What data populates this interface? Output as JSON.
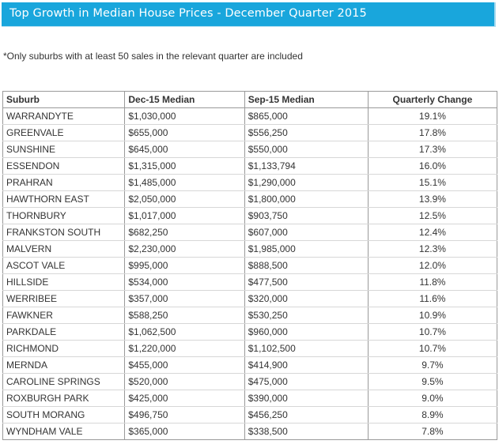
{
  "title": "Top Growth in Median House Prices - December Quarter 2015",
  "note": "*Only suburbs with at least 50 sales in the relevant quarter are included",
  "colors": {
    "title_bar": "#19a6dc",
    "title_text": "#ffffff",
    "border": "#9a9a9a"
  },
  "table": {
    "headers": [
      "Suburb",
      "Dec-15 Median",
      "Sep-15 Median",
      "Quarterly Change"
    ],
    "rows": [
      [
        "WARRANDYTE",
        "$1,030,000",
        "$865,000",
        "19.1%"
      ],
      [
        "GREENVALE",
        "$655,000",
        "$556,250",
        "17.8%"
      ],
      [
        "SUNSHINE",
        "$645,000",
        "$550,000",
        "17.3%"
      ],
      [
        "ESSENDON",
        "$1,315,000",
        "$1,133,794",
        "16.0%"
      ],
      [
        "PRAHRAN",
        "$1,485,000",
        "$1,290,000",
        "15.1%"
      ],
      [
        "HAWTHORN EAST",
        "$2,050,000",
        "$1,800,000",
        "13.9%"
      ],
      [
        "THORNBURY",
        "$1,017,000",
        "$903,750",
        "12.5%"
      ],
      [
        "FRANKSTON SOUTH",
        "$682,250",
        "$607,000",
        "12.4%"
      ],
      [
        "MALVERN",
        "$2,230,000",
        "$1,985,000",
        "12.3%"
      ],
      [
        "ASCOT VALE",
        "$995,000",
        "$888,500",
        "12.0%"
      ],
      [
        "HILLSIDE",
        "$534,000",
        "$477,500",
        "11.8%"
      ],
      [
        "WERRIBEE",
        "$357,000",
        "$320,000",
        "11.6%"
      ],
      [
        "FAWKNER",
        "$588,250",
        "$530,250",
        "10.9%"
      ],
      [
        "PARKDALE",
        "$1,062,500",
        "$960,000",
        "10.7%"
      ],
      [
        "RICHMOND",
        "$1,220,000",
        "$1,102,500",
        "10.7%"
      ],
      [
        "MERNDA",
        "$455,000",
        "$414,900",
        "9.7%"
      ],
      [
        "CAROLINE SPRINGS",
        "$520,000",
        "$475,000",
        "9.5%"
      ],
      [
        "ROXBURGH PARK",
        "$425,000",
        "$390,000",
        "9.0%"
      ],
      [
        "SOUTH MORANG",
        "$496,750",
        "$456,250",
        "8.9%"
      ],
      [
        "WYNDHAM VALE",
        "$365,000",
        "$338,500",
        "7.8%"
      ]
    ]
  }
}
